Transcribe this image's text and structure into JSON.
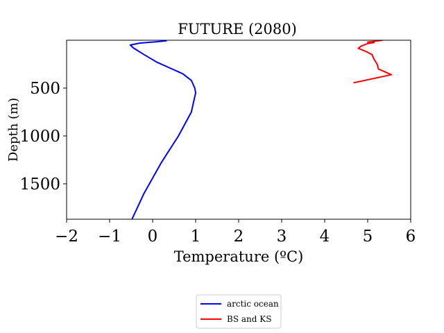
{
  "chart_data": {
    "type": "line",
    "title": "FUTURE (2080)",
    "xlabel": "Temperature (ºC)",
    "ylabel": "Depth (m)",
    "xlim": [
      -2,
      6
    ],
    "ylim": [
      1870,
      0
    ],
    "y_inverted": true,
    "grid": false,
    "legend_position": "bottom-center, below the axes",
    "x_ticks": [
      {
        "value": -2,
        "label": "−2"
      },
      {
        "value": -1,
        "label": "−1"
      },
      {
        "value": 0,
        "label": "0"
      },
      {
        "value": 1,
        "label": "1"
      },
      {
        "value": 2,
        "label": "2"
      },
      {
        "value": 3,
        "label": "3"
      },
      {
        "value": 4,
        "label": "4"
      },
      {
        "value": 5,
        "label": "5"
      },
      {
        "value": 6,
        "label": "6"
      }
    ],
    "y_ticks": [
      {
        "value": 500,
        "label": "500"
      },
      {
        "value": 1000,
        "label": "1000"
      },
      {
        "value": 1500,
        "label": "1500"
      }
    ],
    "series": [
      {
        "name": "arctic ocean",
        "color": "#0000ff",
        "points": [
          {
            "x": 0.33,
            "y": 5
          },
          {
            "x": 0.1,
            "y": 15
          },
          {
            "x": -0.3,
            "y": 30
          },
          {
            "x": -0.52,
            "y": 50
          },
          {
            "x": -0.45,
            "y": 80
          },
          {
            "x": -0.2,
            "y": 150
          },
          {
            "x": 0.1,
            "y": 230
          },
          {
            "x": 0.4,
            "y": 290
          },
          {
            "x": 0.7,
            "y": 350
          },
          {
            "x": 0.9,
            "y": 420
          },
          {
            "x": 0.98,
            "y": 500
          },
          {
            "x": 1.0,
            "y": 550
          },
          {
            "x": 0.9,
            "y": 750
          },
          {
            "x": 0.6,
            "y": 1000
          },
          {
            "x": 0.2,
            "y": 1280
          },
          {
            "x": -0.2,
            "y": 1600
          },
          {
            "x": -0.48,
            "y": 1870
          }
        ]
      },
      {
        "name": "BS and KS",
        "color": "#ff0000",
        "points": [
          {
            "x": 5.35,
            "y": 0
          },
          {
            "x": 5.0,
            "y": 20
          },
          {
            "x": 5.15,
            "y": 25
          },
          {
            "x": 5.0,
            "y": 35
          },
          {
            "x": 4.85,
            "y": 60
          },
          {
            "x": 4.78,
            "y": 85
          },
          {
            "x": 4.95,
            "y": 115
          },
          {
            "x": 5.1,
            "y": 150
          },
          {
            "x": 5.15,
            "y": 200
          },
          {
            "x": 5.22,
            "y": 250
          },
          {
            "x": 5.25,
            "y": 300
          },
          {
            "x": 5.55,
            "y": 360
          },
          {
            "x": 4.67,
            "y": 445
          }
        ]
      }
    ]
  }
}
